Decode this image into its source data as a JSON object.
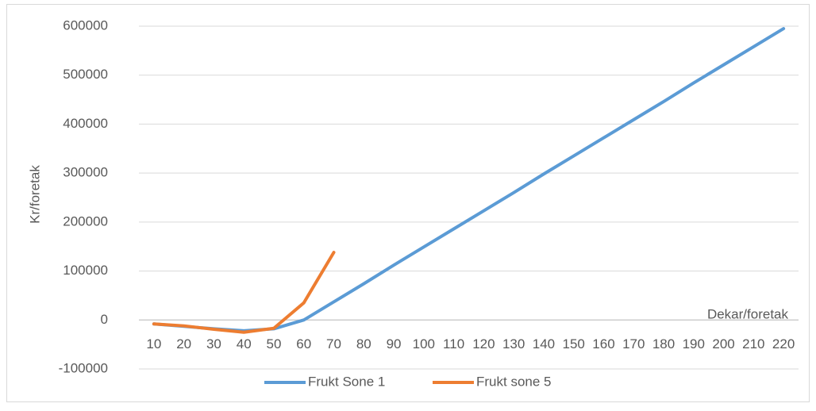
{
  "chart_data": {
    "type": "line",
    "y_label": "Kr/foretak",
    "x_label": "Dekar/foretak",
    "categories": [
      "10",
      "20",
      "30",
      "40",
      "50",
      "60",
      "70",
      "80",
      "90",
      "100",
      "110",
      "120",
      "130",
      "140",
      "150",
      "160",
      "170",
      "180",
      "190",
      "200",
      "210",
      "220"
    ],
    "series": [
      {
        "name": "Frukt Sone 1",
        "color": "#5b9bd5",
        "values": [
          -8000,
          -13000,
          -18000,
          -22000,
          -18000,
          0,
          37000,
          74000,
          112000,
          149000,
          186000,
          223000,
          260000,
          298000,
          335000,
          372000,
          409000,
          446000,
          484000,
          521000,
          558000,
          595000
        ]
      },
      {
        "name": "Frukt sone 5",
        "color": "#ed7d31",
        "values": [
          -8000,
          -12000,
          -19000,
          -25000,
          -17000,
          35000,
          138000,
          null,
          null,
          null,
          null,
          null,
          null,
          null,
          null,
          null,
          null,
          null,
          null,
          null,
          null,
          null
        ]
      }
    ],
    "ylim": [
      -100000,
      600000
    ],
    "yticks": [
      -100000,
      0,
      100000,
      200000,
      300000,
      400000,
      500000,
      600000
    ],
    "grid": true,
    "legend": "bottom"
  }
}
